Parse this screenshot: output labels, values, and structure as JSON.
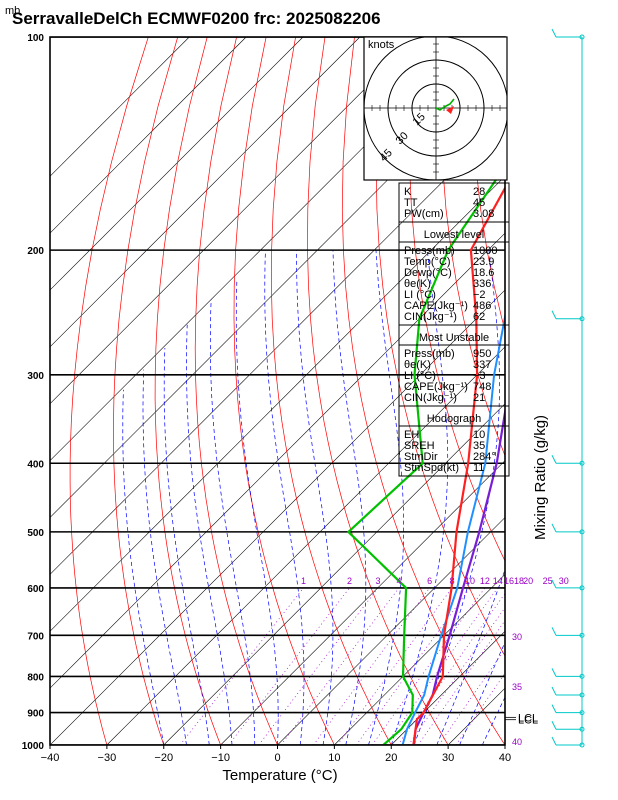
{
  "title": "SerravalleDelCh ECMWF0200 frc: 2025082206",
  "pressure_unit": "mb",
  "chart_data": {
    "type": "line",
    "xlabel": "Temperature (°C)",
    "ylabel": "",
    "right_label": "Mixing Ratio (g/kg)",
    "xlim": [
      -40,
      40
    ],
    "ylim": [
      1000,
      100
    ],
    "x_ticks": [
      "−40",
      "−30",
      "−20",
      "−10",
      "0",
      "10",
      "20",
      "30",
      "40"
    ],
    "pressure_ticks": [
      "100",
      "200",
      "300",
      "400",
      "500",
      "600",
      "700",
      "800",
      "900",
      "1000"
    ],
    "mixing_ratio_labels": [
      "1",
      "2",
      "3",
      "4",
      "6",
      "8",
      "10",
      "12",
      "14",
      "16",
      "18",
      "20",
      "25",
      "30"
    ],
    "theta_labels": [
      "30",
      "35",
      "40"
    ],
    "lcl_labels": [
      "LCL",
      "LCL"
    ],
    "series": [
      {
        "name": "",
        "points": [
          [
            1000,
            24
          ],
          [
            950,
            21.5
          ],
          [
            900,
            20
          ],
          [
            850,
            18.5
          ],
          [
            800,
            16
          ],
          [
            700,
            11
          ],
          [
            600,
            5
          ],
          [
            500,
            -2
          ],
          [
            400,
            -11
          ],
          [
            300,
            -24
          ],
          [
            250,
            -33
          ],
          [
            200,
            -42
          ],
          [
            150,
            -53
          ],
          [
            120,
            -59
          ],
          [
            100,
            -62
          ]
        ]
      },
      {
        "name": "",
        "points": [
          [
            1000,
            22
          ],
          [
            950,
            20
          ],
          [
            900,
            18.5
          ],
          [
            850,
            17
          ],
          [
            800,
            14.5
          ],
          [
            700,
            9.5
          ],
          [
            600,
            4
          ],
          [
            500,
            -4
          ],
          [
            400,
            -13
          ],
          [
            300,
            -27
          ],
          [
            250,
            -35
          ],
          [
            200,
            -45
          ],
          [
            150,
            -57
          ],
          [
            120,
            -63
          ]
        ]
      },
      {
        "name": "",
        "points": [
          [
            1000,
            23.9
          ],
          [
            950,
            21.5
          ],
          [
            920,
            20
          ],
          [
            900,
            20
          ],
          [
            800,
            17
          ],
          [
            700,
            10
          ],
          [
            600,
            3
          ],
          [
            500,
            -6
          ],
          [
            400,
            -16
          ],
          [
            300,
            -30
          ],
          [
            250,
            -40
          ],
          [
            200,
            -53
          ],
          [
            150,
            -60
          ],
          [
            100,
            -67
          ]
        ]
      },
      {
        "name": "",
        "points": [
          [
            1000,
            18.6
          ],
          [
            950,
            19
          ],
          [
            900,
            18
          ],
          [
            850,
            15
          ],
          [
            800,
            10
          ],
          [
            700,
            3
          ],
          [
            600,
            -5
          ],
          [
            500,
            -25
          ],
          [
            400,
            -24
          ],
          [
            300,
            -41
          ],
          [
            250,
            -50
          ],
          [
            200,
            -57
          ],
          [
            150,
            -62
          ],
          [
            100,
            -67
          ]
        ]
      }
    ],
    "hodograph": {
      "unit": "knots",
      "ring_labels": [
        "15",
        "30",
        "45"
      ]
    },
    "indices": [
      {
        "label": "K",
        "value": "28"
      },
      {
        "label": "TT",
        "value": "45"
      },
      {
        "label": "PW(cm)",
        "value": "3.08"
      }
    ],
    "sections": [
      {
        "heading": "Lowest level",
        "rows": [
          {
            "label": "Press(mb)",
            "value": "1000"
          },
          {
            "label": "Temp(°C)",
            "value": "23.9"
          },
          {
            "label": "Dewp(°C)",
            "value": "18.6"
          },
          {
            "label": "θe(K)",
            "value": "336"
          },
          {
            "label": "LI (°C)",
            "value": "−2"
          },
          {
            "label": "CAPE(Jkg⁻¹)",
            "value": "486"
          },
          {
            "label": "CIN(Jkg⁻¹)",
            "value": "62"
          }
        ]
      },
      {
        "heading": "Most Unstable",
        "rows": [
          {
            "label": "Press(mb)",
            "value": "950"
          },
          {
            "label": "θe(K)",
            "value": "337"
          },
          {
            "label": "LI (°C)",
            "value": "−3"
          },
          {
            "label": "CAPE(Jkg⁻¹)",
            "value": "748"
          },
          {
            "label": "CIN(Jkg⁻¹)",
            "value": "21"
          }
        ]
      },
      {
        "heading": "Hodograph",
        "rows": [
          {
            "label": "EH",
            "value": "10"
          },
          {
            "label": "SREH",
            "value": "35"
          },
          {
            "label": "StmDir",
            "value": "284°"
          },
          {
            "label": "StmSpd(kt)",
            "value": "11"
          }
        ]
      }
    ]
  },
  "colors": {
    "isotherm": "#000000",
    "dry_adiabat": "#ff0000",
    "moist_adiabat": "#0000ff",
    "mixing_ratio": "#9b00c8",
    "temperature": "#ff2020",
    "dewpoint": "#00c000",
    "wind_barb": "#00c8c8"
  }
}
